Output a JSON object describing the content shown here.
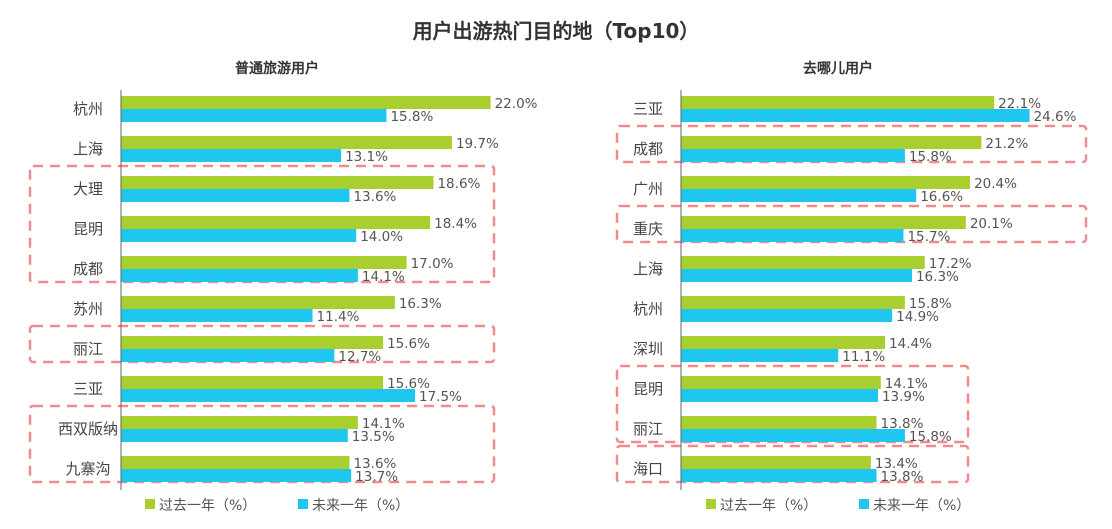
{
  "chart_data": {
    "title": "用户出游热门目的地（Top10）",
    "type": "bar",
    "orientation": "horizontal",
    "colors": {
      "past_year": "#a8cf2e",
      "next_year": "#1ec6f0",
      "highlight_box": "#ef8a8f"
    },
    "charts": [
      {
        "subtitle": "普通旅游用户",
        "categories": [
          "杭州",
          "上海",
          "大理",
          "昆明",
          "成都",
          "苏州",
          "丽江",
          "三亚",
          "西双版纳",
          "九寨沟"
        ],
        "series": [
          {
            "name": "过去一年（%）",
            "values": [
              22.0,
              19.7,
              18.6,
              18.4,
              17.0,
              16.3,
              15.6,
              15.6,
              14.1,
              13.6
            ]
          },
          {
            "name": "未来一年（%）",
            "values": [
              15.8,
              13.1,
              13.6,
              14.0,
              14.1,
              11.4,
              12.7,
              17.5,
              13.5,
              13.7
            ]
          }
        ],
        "highlighted_groups": [
          [
            "大理",
            "昆明",
            "成都"
          ],
          [
            "丽江"
          ],
          [
            "西双版纳",
            "九寨沟"
          ]
        ],
        "legend": "bottom"
      },
      {
        "subtitle": "去哪儿用户",
        "categories": [
          "三亚",
          "成都",
          "广州",
          "重庆",
          "上海",
          "杭州",
          "深圳",
          "昆明",
          "丽江",
          "海口"
        ],
        "series": [
          {
            "name": "过去一年（%）",
            "values": [
              22.1,
              21.2,
              20.4,
              20.1,
              17.2,
              15.8,
              14.4,
              14.1,
              13.8,
              13.4
            ]
          },
          {
            "name": "未来一年（%）",
            "values": [
              24.6,
              15.8,
              16.6,
              15.7,
              16.3,
              14.9,
              11.1,
              13.9,
              15.8,
              13.8
            ]
          }
        ],
        "highlighted_groups": [
          [
            "成都"
          ],
          [
            "重庆"
          ],
          [
            "昆明",
            "丽江"
          ],
          [
            "海口"
          ]
        ],
        "legend": "bottom"
      }
    ]
  }
}
